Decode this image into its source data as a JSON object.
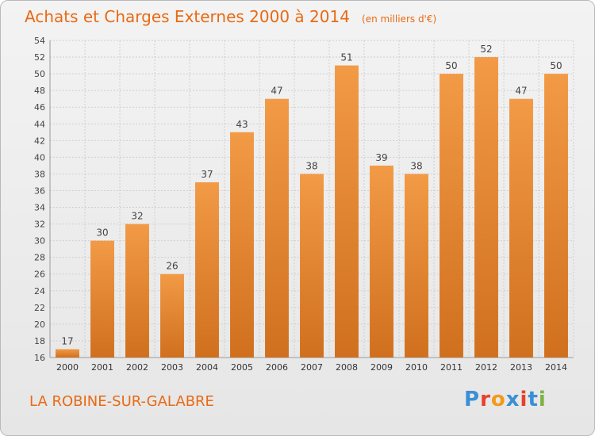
{
  "header": {
    "title": "Achats et Charges Externes 2000 à 2014",
    "unit": "(en milliers d'€)"
  },
  "footer": {
    "place": "LA ROBINE-SUR-GALABRE",
    "logo_text": "Proxiti",
    "logo_colors": [
      "#3a8fd6",
      "#e8402a",
      "#f29a1a",
      "#3a8fd6",
      "#e8402a",
      "#3a8fd6",
      "#7cb342"
    ]
  },
  "chart_data": {
    "type": "bar",
    "title": "Achats et Charges Externes 2000 à 2014",
    "subtitle": "(en milliers d'€)",
    "xlabel": "",
    "ylabel": "",
    "categories": [
      "2000",
      "2001",
      "2002",
      "2003",
      "2004",
      "2005",
      "2006",
      "2007",
      "2008",
      "2009",
      "2010",
      "2011",
      "2012",
      "2013",
      "2014"
    ],
    "values": [
      17,
      30,
      32,
      26,
      37,
      43,
      47,
      38,
      51,
      39,
      38,
      50,
      52,
      47,
      50
    ],
    "data_labels": [
      "17",
      "30",
      "32",
      "26",
      "37",
      "43",
      "47",
      "38",
      "51",
      "39",
      "38",
      "50",
      "52",
      "47",
      "50"
    ],
    "ylim": [
      16,
      54
    ],
    "yticks": [
      16,
      18,
      20,
      22,
      24,
      26,
      28,
      30,
      32,
      34,
      36,
      38,
      40,
      42,
      44,
      46,
      48,
      50,
      52,
      54
    ],
    "grid": true,
    "bar_color": "#f29a46",
    "bar_color_dark": "#d0701e"
  }
}
